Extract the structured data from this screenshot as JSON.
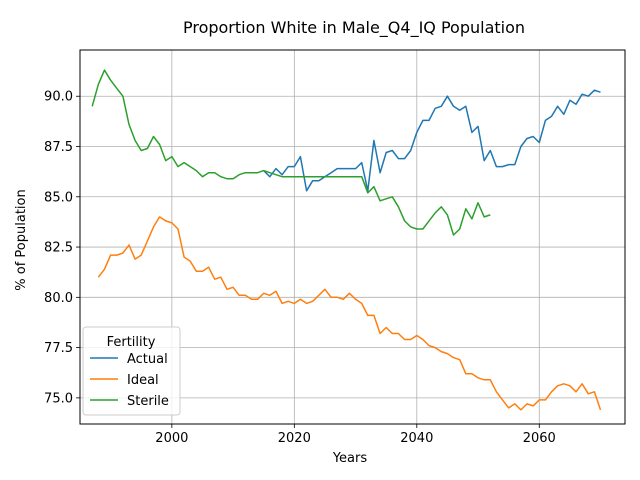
{
  "chart_data": {
    "type": "line",
    "title": "Proportion White in Male_Q4_IQ Population",
    "xlabel": "Years",
    "ylabel": "% of Population",
    "xlim": [
      1985,
      2074
    ],
    "ylim": [
      73.7,
      92.3
    ],
    "xticks": [
      2000,
      2020,
      2040,
      2060
    ],
    "yticks": [
      75.0,
      77.5,
      80.0,
      82.5,
      85.0,
      87.5,
      90.0
    ],
    "xtick_labels": [
      "2000",
      "2020",
      "2040",
      "2060"
    ],
    "ytick_labels": [
      "75.0",
      "77.5",
      "80.0",
      "82.5",
      "85.0",
      "87.5",
      "90.0"
    ],
    "grid": true,
    "legend": {
      "title": "Fertility",
      "placement": "lower-left"
    },
    "series": [
      {
        "name": "Actual",
        "color": "#1f77b4",
        "x": [
          2015,
          2016,
          2017,
          2018,
          2019,
          2020,
          2021,
          2022,
          2023,
          2024,
          2025,
          2026,
          2027,
          2028,
          2029,
          2030,
          2031,
          2032,
          2033,
          2034,
          2035,
          2036,
          2037,
          2038,
          2039,
          2040,
          2041,
          2042,
          2043,
          2044,
          2045,
          2046,
          2047,
          2048,
          2049,
          2050,
          2051,
          2052,
          2053,
          2054,
          2055,
          2056,
          2057,
          2058,
          2059,
          2060,
          2061,
          2062,
          2063,
          2064,
          2065,
          2066,
          2067,
          2068,
          2069,
          2070
        ],
        "y": [
          86.3,
          86.0,
          86.4,
          86.1,
          86.5,
          86.5,
          87.0,
          85.3,
          85.8,
          85.8,
          86.0,
          86.2,
          86.4,
          86.4,
          86.4,
          86.4,
          86.7,
          85.3,
          87.8,
          86.2,
          87.2,
          87.3,
          86.9,
          86.9,
          87.3,
          88.2,
          88.8,
          88.8,
          89.4,
          89.5,
          90.0,
          89.5,
          89.3,
          89.5,
          88.2,
          88.5,
          86.8,
          87.3,
          86.5,
          86.5,
          86.6,
          86.6,
          87.5,
          87.9,
          88.0,
          87.7,
          88.8,
          89.0,
          89.5,
          89.1,
          89.8,
          89.6,
          90.1,
          90.0,
          90.3,
          90.2
        ]
      },
      {
        "name": "Ideal",
        "color": "#ff7f0e",
        "x": [
          1988,
          1989,
          1990,
          1991,
          1992,
          1993,
          1994,
          1995,
          1996,
          1997,
          1998,
          1999,
          2000,
          2001,
          2002,
          2003,
          2004,
          2005,
          2006,
          2007,
          2008,
          2009,
          2010,
          2011,
          2012,
          2013,
          2014,
          2015,
          2016,
          2017,
          2018,
          2019,
          2020,
          2021,
          2022,
          2023,
          2024,
          2025,
          2026,
          2027,
          2028,
          2029,
          2030,
          2031,
          2032,
          2033,
          2034,
          2035,
          2036,
          2037,
          2038,
          2039,
          2040,
          2041,
          2042,
          2043,
          2044,
          2045,
          2046,
          2047,
          2048,
          2049,
          2050,
          2051,
          2052,
          2053,
          2054,
          2055,
          2056,
          2057,
          2058,
          2059,
          2060,
          2061,
          2062,
          2063,
          2064,
          2065,
          2066,
          2067,
          2068,
          2069,
          2070
        ],
        "y": [
          81.0,
          81.4,
          82.1,
          82.1,
          82.2,
          82.6,
          81.9,
          82.1,
          82.8,
          83.5,
          84.0,
          83.8,
          83.7,
          83.4,
          82.0,
          81.8,
          81.3,
          81.3,
          81.5,
          80.9,
          81.0,
          80.4,
          80.5,
          80.1,
          80.1,
          79.9,
          79.9,
          80.2,
          80.1,
          80.3,
          79.7,
          79.8,
          79.7,
          79.9,
          79.7,
          79.8,
          80.1,
          80.4,
          80.0,
          80.0,
          79.9,
          80.2,
          79.9,
          79.7,
          79.1,
          79.1,
          78.2,
          78.5,
          78.2,
          78.2,
          77.9,
          77.9,
          78.1,
          77.9,
          77.6,
          77.5,
          77.3,
          77.2,
          77.0,
          76.9,
          76.2,
          76.2,
          76.0,
          75.9,
          75.9,
          75.3,
          74.9,
          74.5,
          74.7,
          74.4,
          74.7,
          74.6,
          74.9,
          74.9,
          75.3,
          75.6,
          75.7,
          75.6,
          75.3,
          75.7,
          75.2,
          75.3,
          74.4
        ]
      },
      {
        "name": "Sterile",
        "color": "#2ca02c",
        "x": [
          1987,
          1988,
          1989,
          1990,
          1991,
          1992,
          1993,
          1994,
          1995,
          1996,
          1997,
          1998,
          1999,
          2000,
          2001,
          2002,
          2003,
          2004,
          2005,
          2006,
          2007,
          2008,
          2009,
          2010,
          2011,
          2012,
          2013,
          2014,
          2015,
          2016,
          2017,
          2018,
          2019,
          2020,
          2021,
          2022,
          2023,
          2024,
          2025,
          2026,
          2027,
          2028,
          2029,
          2030,
          2031,
          2032,
          2033,
          2034,
          2035,
          2036,
          2037,
          2038,
          2039,
          2040,
          2041,
          2042,
          2043,
          2044,
          2045,
          2046,
          2047,
          2048,
          2049,
          2050,
          2051,
          2052
        ],
        "y": [
          89.5,
          90.6,
          91.3,
          90.8,
          90.4,
          90.0,
          88.6,
          87.8,
          87.3,
          87.4,
          88.0,
          87.6,
          86.8,
          87.0,
          86.5,
          86.7,
          86.5,
          86.3,
          86.0,
          86.2,
          86.2,
          86.0,
          85.9,
          85.9,
          86.1,
          86.2,
          86.2,
          86.2,
          86.3,
          86.2,
          86.1,
          86.0,
          86.0,
          86.0,
          86.0,
          86.0,
          86.0,
          86.0,
          86.0,
          86.0,
          86.0,
          86.0,
          86.0,
          86.0,
          86.0,
          85.2,
          85.5,
          84.8,
          84.9,
          85.0,
          84.5,
          83.8,
          83.5,
          83.4,
          83.4,
          83.8,
          84.2,
          84.5,
          84.1,
          83.1,
          83.4,
          84.4,
          83.9,
          84.7,
          84.0,
          84.1
        ]
      }
    ]
  }
}
